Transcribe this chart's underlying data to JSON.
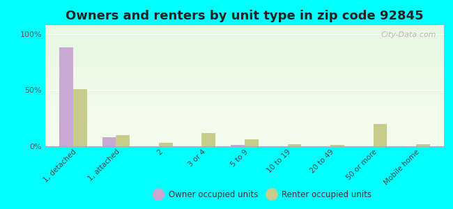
{
  "title": "Owners and renters by unit type in zip code 92845",
  "categories": [
    "1, detached",
    "1, attached",
    "2",
    "3 or 4",
    "5 to 9",
    "10 to 19",
    "20 to 49",
    "50 or more",
    "Mobile home"
  ],
  "owner_values": [
    88,
    8,
    0,
    0,
    1,
    0,
    0,
    0,
    0
  ],
  "renter_values": [
    51,
    10,
    3,
    12,
    6,
    2,
    1,
    20,
    2
  ],
  "owner_color": "#c9a8d4",
  "renter_color": "#c8cc8a",
  "background_color": "#00ffff",
  "yticks": [
    0,
    50,
    100
  ],
  "ylim": [
    0,
    108
  ],
  "title_fontsize": 13,
  "legend_labels": [
    "Owner occupied units",
    "Renter occupied units"
  ]
}
